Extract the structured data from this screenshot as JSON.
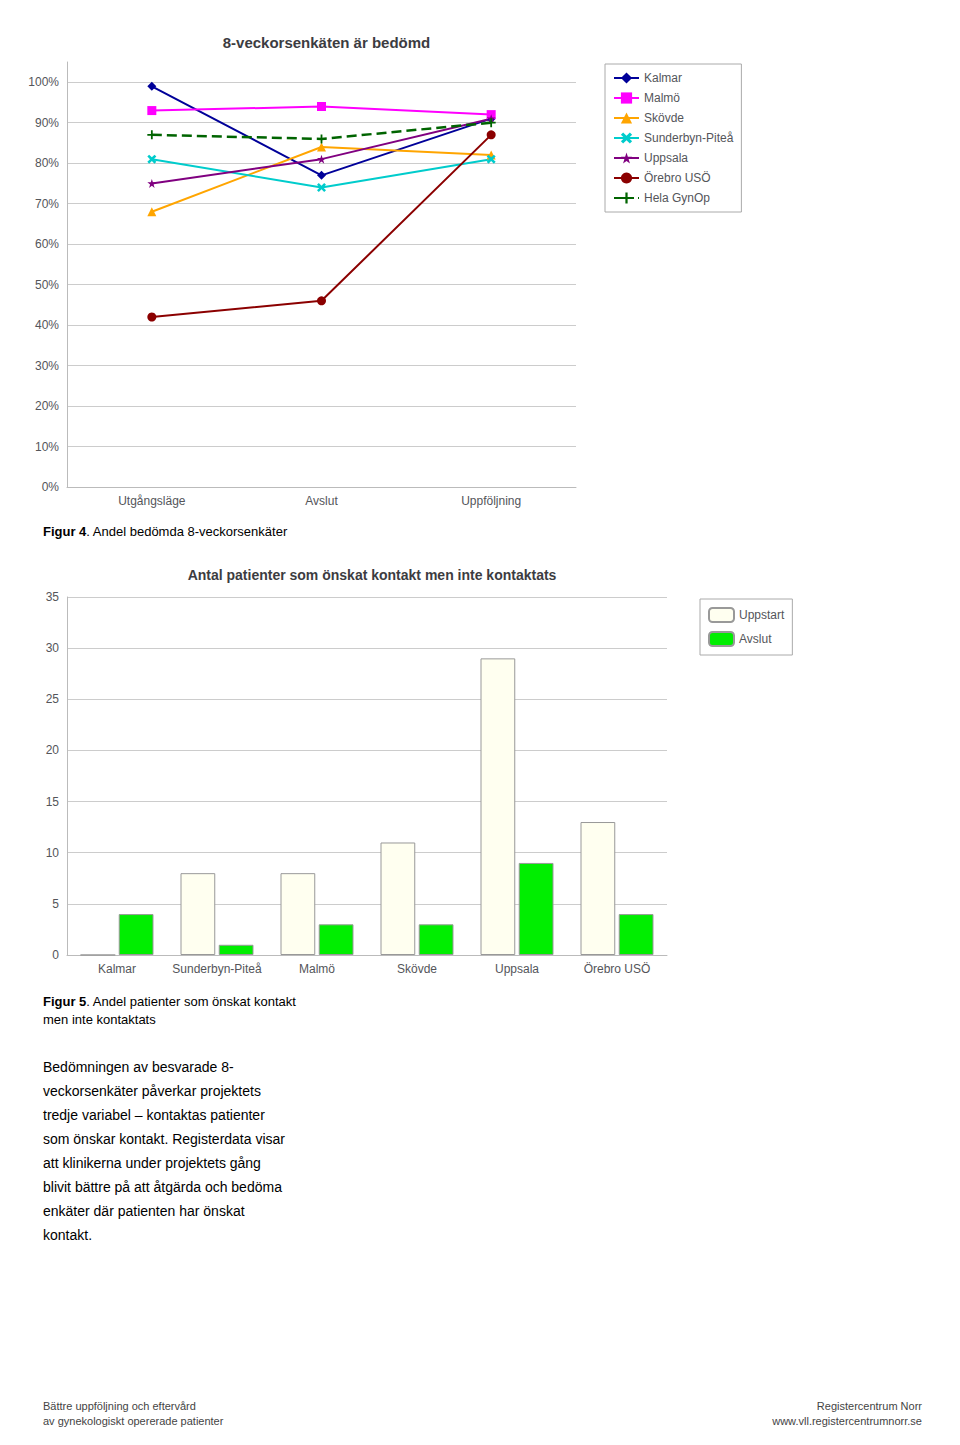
{
  "chart_data": [
    {
      "type": "line",
      "title": "8-veckorsenkäten är bedömd",
      "categories": [
        "Utgångsläge",
        "Avslut",
        "Uppföljning"
      ],
      "series": [
        {
          "name": "Kalmar",
          "color": "#000099",
          "marker": "diamond",
          "line_style": "solid",
          "values": [
            99,
            77,
            91
          ]
        },
        {
          "name": "Malmö",
          "color": "#FF00FF",
          "marker": "square",
          "line_style": "solid",
          "values": [
            93,
            94,
            92
          ]
        },
        {
          "name": "Skövde",
          "color": "#FFA500",
          "marker": "triangle",
          "line_style": "solid",
          "values": [
            68,
            84,
            82
          ]
        },
        {
          "name": "Sunderbyn-Piteå",
          "color": "#00CCCC",
          "marker": "x",
          "line_style": "solid",
          "values": [
            81,
            74,
            81
          ]
        },
        {
          "name": "Uppsala",
          "color": "#800080",
          "marker": "star",
          "line_style": "solid",
          "values": [
            75,
            81,
            91
          ]
        },
        {
          "name": "Örebro USÖ",
          "color": "#8B0000",
          "marker": "circle",
          "line_style": "solid",
          "values": [
            42,
            46,
            87
          ]
        },
        {
          "name": "Hela GynOp",
          "color": "#006400",
          "marker": "plus",
          "line_style": "dashed",
          "values": [
            87,
            86,
            90
          ]
        }
      ],
      "ylim": [
        0,
        105
      ],
      "yticks": [
        {
          "value": 0,
          "label": "0%"
        },
        {
          "value": 10,
          "label": "10%"
        },
        {
          "value": 20,
          "label": "20%"
        },
        {
          "value": 30,
          "label": "30%"
        },
        {
          "value": 40,
          "label": "40%"
        },
        {
          "value": 50,
          "label": "50%"
        },
        {
          "value": 60,
          "label": "60%"
        },
        {
          "value": 70,
          "label": "70%"
        },
        {
          "value": 80,
          "label": "80%"
        },
        {
          "value": 90,
          "label": "90%"
        },
        {
          "value": 100,
          "label": "100%"
        }
      ],
      "grid": true,
      "legend": "right",
      "annotations": [
        "Figur 4. Andel bedömda 8-veckorsenkäter"
      ]
    },
    {
      "type": "bar",
      "title": "Antal patienter som önskat kontakt men inte kontaktats",
      "categories": [
        "Kalmar",
        "Sunderbyn-Piteå",
        "Malmö",
        "Skövde",
        "Uppsala",
        "Örebro USÖ"
      ],
      "series": [
        {
          "name": "Uppstart",
          "color": "#FFFFF0",
          "values": [
            0,
            8,
            8,
            11,
            29,
            13
          ]
        },
        {
          "name": "Avslut",
          "color": "#00EE00",
          "values": [
            4,
            1,
            3,
            3,
            9,
            4
          ]
        }
      ],
      "ylim": [
        0,
        35
      ],
      "yticks": [
        0,
        5,
        10,
        15,
        20,
        25,
        30,
        35
      ],
      "grid": true,
      "legend": "right",
      "annotations": [
        "Figur 5. Andel patienter som önskat kontakt\nmen inte kontaktats",
        "Bedömningen av besvarade 8-\nveckorsenkäter påverkar projektets\ntredje variabel – kontaktas patienter\nsom önskar kontakt. Registerdata visar\natt klinikerna under projektets gång\nblivit bättre på att åtgärda och bedöma\nenkäter där patienten har önskat\nkontakt.",
        "Bättre uppföljning och eftervård\nav gynekologiskt opererade patienter",
        "Registercentrum Norr\nwww.vll.registercentrumnorr.se"
      ]
    }
  ]
}
